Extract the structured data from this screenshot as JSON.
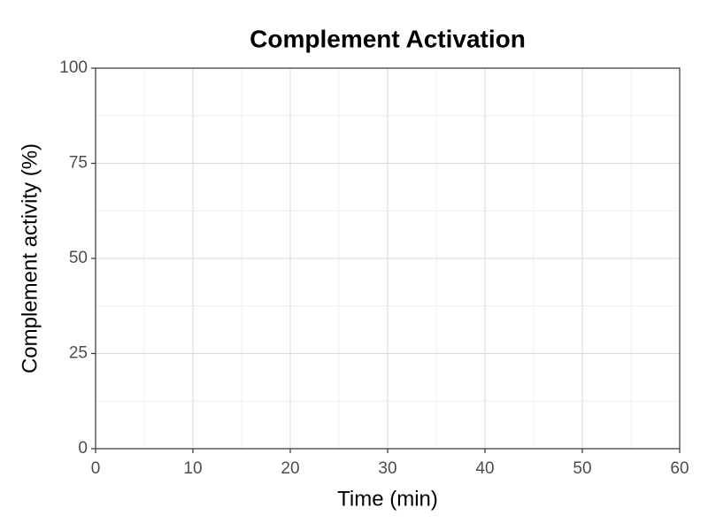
{
  "chart_data": {
    "type": "line",
    "title": "Complement Activation",
    "x_label": "Time (min)",
    "y_label": "Complement activity (%)",
    "xlim": [
      0,
      60
    ],
    "xticks": [
      0,
      10,
      20,
      30,
      40,
      50,
      60
    ],
    "ylim": [
      0,
      100
    ],
    "yticks": [
      0,
      25,
      50,
      75,
      100
    ],
    "grid": true,
    "minor_grid": true
  }
}
